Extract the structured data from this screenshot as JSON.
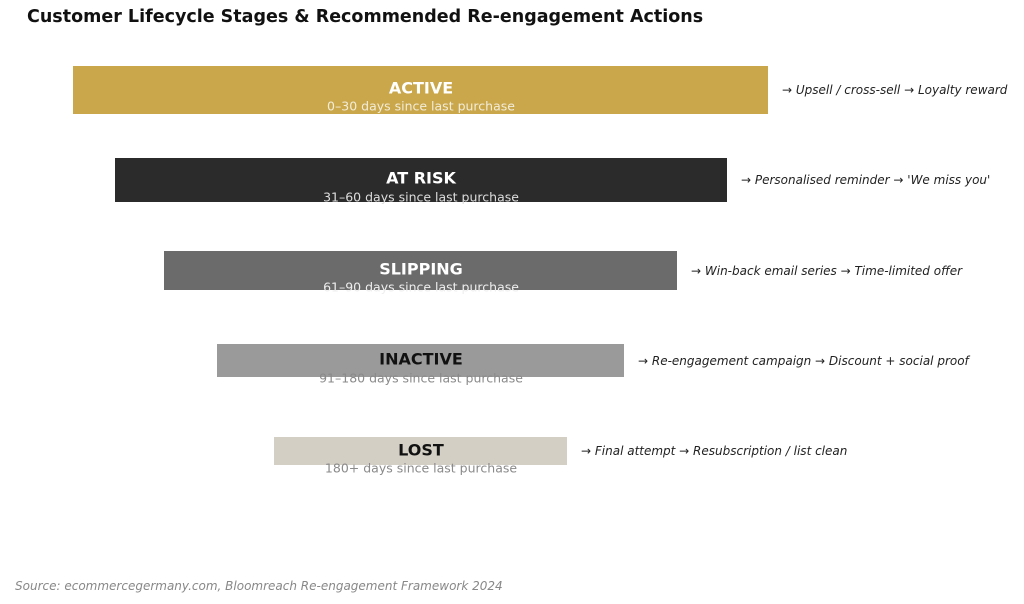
{
  "title": "Customer Lifecycle Stages & Recommended Re-engagement Actions",
  "stages": [
    {
      "label": "ACTIVE",
      "range": "0–30 days since last purchase",
      "actions": "→  Upsell / cross-sell  →  Loyalty reward",
      "color": "#C9A74A",
      "label_color": "#ffffff",
      "range_color": "#f2ecd9"
    },
    {
      "label": "AT RISK",
      "range": "31–60 days since last purchase",
      "actions": "→  Personalised reminder  →  'We miss you'",
      "color": "#2B2B2B",
      "label_color": "#ffffff",
      "range_color": "#dddddd"
    },
    {
      "label": "SLIPPING",
      "range": "61–90 days since last purchase",
      "actions": "→  Win-back email series  →  Time-limited offer",
      "color": "#6B6B6B",
      "label_color": "#ffffff",
      "range_color": "#eeeeee"
    },
    {
      "label": "INACTIVE",
      "range": "91–180 days since last purchase",
      "actions": "→  Re-engagement campaign  →  Discount + social proof",
      "color": "#9A9A9A",
      "label_color": "#111111",
      "range_color": "#8a8a8a"
    },
    {
      "label": "LOST",
      "range": "180+ days since last purchase",
      "actions": "→  Final attempt  →  Resubscription / list clean",
      "color": "#D3CFC4",
      "label_color": "#111111",
      "range_color": "#8a8a8a"
    }
  ],
  "source": "Source: ecommercegermany.com, Bloomreach Re-engagement Framework 2024"
}
